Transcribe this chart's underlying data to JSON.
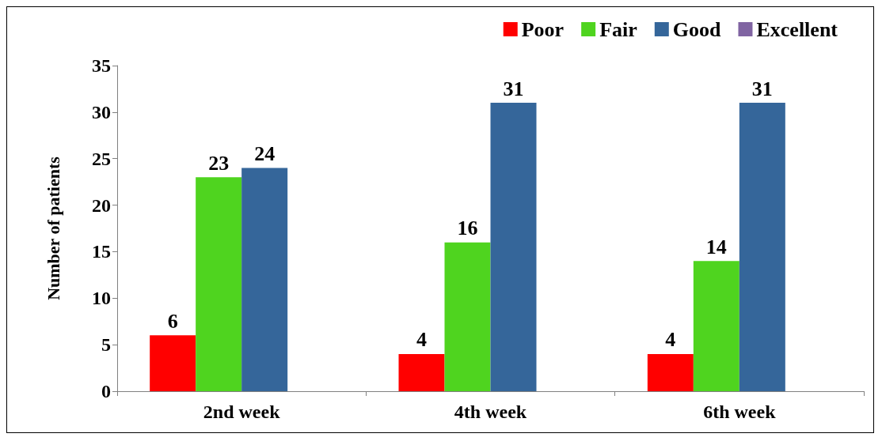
{
  "chart_data": {
    "type": "bar",
    "ylabel": "Number of patients",
    "categories": [
      "2nd week",
      "4th week",
      "6th week"
    ],
    "series": [
      {
        "name": "Poor",
        "color": "#ff0000",
        "values": [
          6,
          4,
          4
        ],
        "value_labels": [
          "6",
          "4",
          "4"
        ]
      },
      {
        "name": "Fair",
        "color": "#4fd41f",
        "values": [
          23,
          16,
          14
        ],
        "value_labels": [
          "23",
          "16",
          "14"
        ]
      },
      {
        "name": "Good",
        "color": "#35669a",
        "values": [
          24,
          31,
          31
        ],
        "value_labels": [
          "24",
          "31",
          "31"
        ]
      },
      {
        "name": "Excellent",
        "color": "#8064a2",
        "values": [
          null,
          null,
          null
        ],
        "value_labels": [
          null,
          null,
          null
        ]
      }
    ],
    "ylim": [
      0,
      35
    ],
    "yticks": [
      0,
      5,
      10,
      15,
      20,
      25,
      30,
      35
    ],
    "grid": false,
    "legend": "top right"
  }
}
